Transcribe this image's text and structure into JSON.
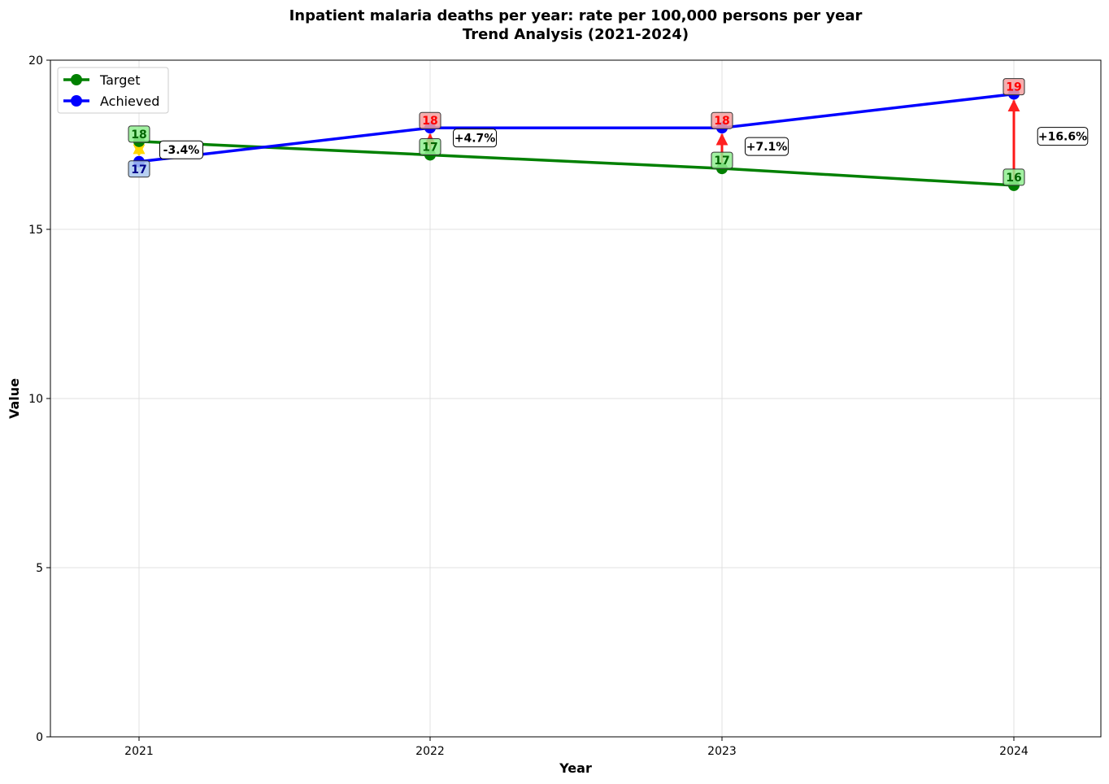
{
  "chart_data": {
    "type": "line",
    "title_line1": "Inpatient malaria deaths per year: rate per 100,000 persons per year",
    "title_line2": "Trend Analysis (2021-2024)",
    "xlabel": "Year",
    "ylabel": "Value",
    "categories": [
      "2021",
      "2022",
      "2023",
      "2024"
    ],
    "ylim": [
      0,
      20
    ],
    "yticks": [
      0,
      5,
      10,
      15,
      20
    ],
    "grid": true,
    "legend_position": "top-left",
    "series": [
      {
        "name": "Target",
        "color": "#008000",
        "values": [
          17.6,
          17.2,
          16.8,
          16.3
        ],
        "labels": [
          "18",
          "17",
          "17",
          "16"
        ]
      },
      {
        "name": "Achieved",
        "color": "#0000ff",
        "values": [
          17.0,
          18.0,
          18.0,
          19.0
        ],
        "labels": [
          "17",
          "18",
          "18",
          "19"
        ]
      }
    ],
    "differences": [
      "-3.4%",
      "+4.7%",
      "+7.1%",
      "+16.6%"
    ],
    "colors": {
      "above_target": "#ff0000",
      "below_target": "#ffd700",
      "target_box": "#90ee90",
      "achieved_box_above": "#f4a0a0",
      "achieved_box_below": "#aac8ee"
    }
  }
}
